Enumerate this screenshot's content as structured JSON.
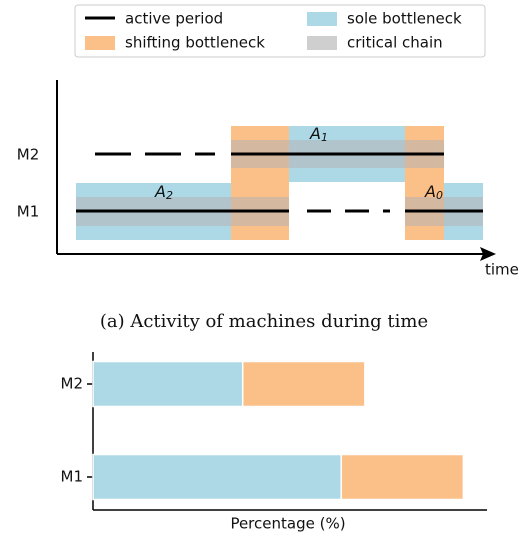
{
  "diagram": {
    "legend": [
      "active period",
      "critical chain"
    ],
    "machines": [
      "M2",
      "M1"
    ],
    "annotations": [
      {
        "base": "A",
        "sub": "1"
      },
      {
        "base": "A",
        "sub": "2"
      },
      {
        "base": "A",
        "sub": "0"
      }
    ],
    "axis_label": "time",
    "caption": "(a) Activity of machines during time"
  },
  "chart_data": {
    "type": "stacked-barh",
    "categories": [
      "M2",
      "M1"
    ],
    "series": [
      {
        "name": "sole bottleneck",
        "color": "#add8e6",
        "values": [
          38,
          63
        ]
      },
      {
        "name": "shifting bottleneck",
        "color": "#fbbf88",
        "values": [
          31,
          31
        ]
      }
    ],
    "xlim": [
      0,
      100
    ],
    "xlabel": "Percentage (%)"
  }
}
